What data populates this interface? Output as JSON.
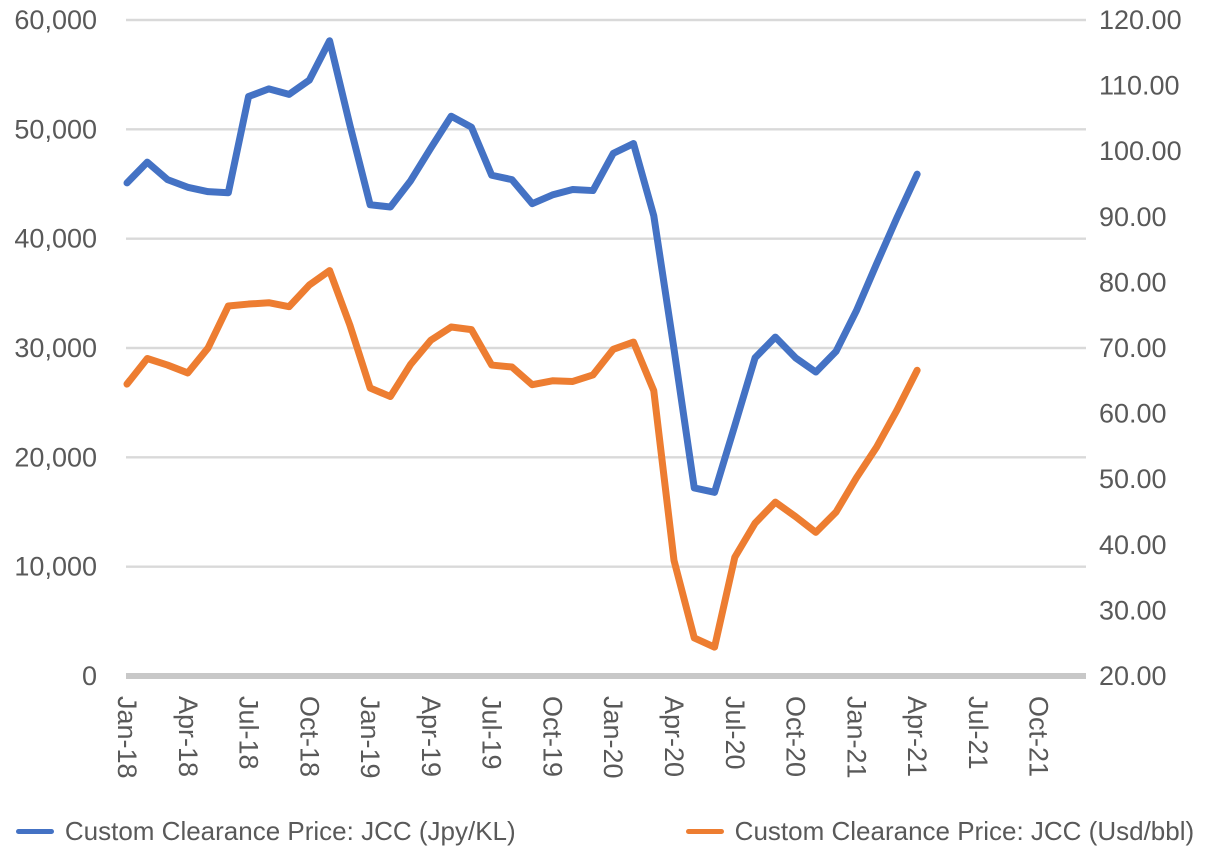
{
  "chart_data": {
    "type": "line",
    "title": "",
    "grid": true,
    "legend_position": "bottom",
    "categories": [
      "Jan-18",
      "Feb-18",
      "Mar-18",
      "Apr-18",
      "May-18",
      "Jun-18",
      "Jul-18",
      "Aug-18",
      "Sep-18",
      "Oct-18",
      "Nov-18",
      "Dec-18",
      "Jan-19",
      "Feb-19",
      "Mar-19",
      "Apr-19",
      "May-19",
      "Jun-19",
      "Jul-19",
      "Aug-19",
      "Sep-19",
      "Oct-19",
      "Nov-19",
      "Dec-19",
      "Jan-20",
      "Feb-20",
      "Mar-20",
      "Apr-20",
      "May-20",
      "Jun-20",
      "Jul-20",
      "Aug-20",
      "Sep-20",
      "Oct-20",
      "Nov-20",
      "Dec-20",
      "Jan-21",
      "Feb-21",
      "Mar-21",
      "Apr-21"
    ],
    "series": [
      {
        "name": "Custom Clearance Price: JCC (Jpy/KL)",
        "axis": "left",
        "color": "#4472C4",
        "values": [
          45100,
          47000,
          45400,
          44700,
          44300,
          44200,
          53000,
          53700,
          53200,
          54500,
          58100,
          50400,
          43100,
          42900,
          45300,
          48300,
          51200,
          50200,
          45800,
          45400,
          43200,
          44000,
          44500,
          44400,
          47800,
          48700,
          42100,
          29900,
          17200,
          16800,
          22900,
          29100,
          31000,
          29100,
          27800,
          29700,
          33400,
          37700,
          41900,
          45900
        ]
      },
      {
        "name": "Custom Clearance Price: JCC (Usd/bbl)",
        "axis": "right",
        "color": "#ED7D31",
        "values": [
          64.5,
          68.4,
          67.4,
          66.2,
          70.0,
          76.4,
          76.7,
          76.9,
          76.3,
          79.6,
          81.8,
          73.5,
          63.9,
          62.6,
          67.5,
          71.2,
          73.2,
          72.8,
          67.4,
          67.1,
          64.4,
          65.0,
          64.9,
          65.9,
          69.8,
          70.9,
          63.5,
          37.6,
          25.8,
          24.4,
          38.1,
          43.3,
          46.5,
          44.3,
          41.9,
          45.0,
          50.2,
          54.9,
          60.5,
          66.6
        ]
      }
    ],
    "left_axis": {
      "min": 0,
      "max": 60000,
      "step": 10000,
      "ticks": [
        {
          "value": 0,
          "label": "0"
        },
        {
          "value": 10000,
          "label": "10,000"
        },
        {
          "value": 20000,
          "label": "20,000"
        },
        {
          "value": 30000,
          "label": "30,000"
        },
        {
          "value": 40000,
          "label": "40,000"
        },
        {
          "value": 50000,
          "label": "50,000"
        },
        {
          "value": 60000,
          "label": "60,000"
        }
      ]
    },
    "right_axis": {
      "min": 20,
      "max": 120,
      "step": 10,
      "ticks": [
        {
          "value": 20,
          "label": "20.00"
        },
        {
          "value": 30,
          "label": "30.00"
        },
        {
          "value": 40,
          "label": "40.00"
        },
        {
          "value": 50,
          "label": "50.00"
        },
        {
          "value": 60,
          "label": "60.00"
        },
        {
          "value": 70,
          "label": "70.00"
        },
        {
          "value": 80,
          "label": "80.00"
        },
        {
          "value": 90,
          "label": "90.00"
        },
        {
          "value": 100,
          "label": "100.00"
        },
        {
          "value": 110,
          "label": "110.00"
        },
        {
          "value": 120,
          "label": "120.00"
        }
      ]
    },
    "x_axis": {
      "ticks": [
        {
          "month_index": 0,
          "label": "Jan-18"
        },
        {
          "month_index": 3,
          "label": "Apr-18"
        },
        {
          "month_index": 6,
          "label": "Jul-18"
        },
        {
          "month_index": 9,
          "label": "Oct-18"
        },
        {
          "month_index": 12,
          "label": "Jan-19"
        },
        {
          "month_index": 15,
          "label": "Apr-19"
        },
        {
          "month_index": 18,
          "label": "Jul-19"
        },
        {
          "month_index": 21,
          "label": "Oct-19"
        },
        {
          "month_index": 24,
          "label": "Jan-20"
        },
        {
          "month_index": 27,
          "label": "Apr-20"
        },
        {
          "month_index": 30,
          "label": "Jul-20"
        },
        {
          "month_index": 33,
          "label": "Oct-20"
        },
        {
          "month_index": 36,
          "label": "Jan-21"
        },
        {
          "month_index": 39,
          "label": "Apr-21"
        },
        {
          "month_index": 42,
          "label": "Jul-21"
        },
        {
          "month_index": 45,
          "label": "Oct-21"
        }
      ]
    }
  },
  "colors": {
    "series_jpy": "#4472C4",
    "series_usd": "#ED7D31",
    "gridline": "#D9D9D9",
    "axis_line": "#C8C8C8",
    "axis_text": "#595959",
    "background": "#FFFFFF"
  }
}
